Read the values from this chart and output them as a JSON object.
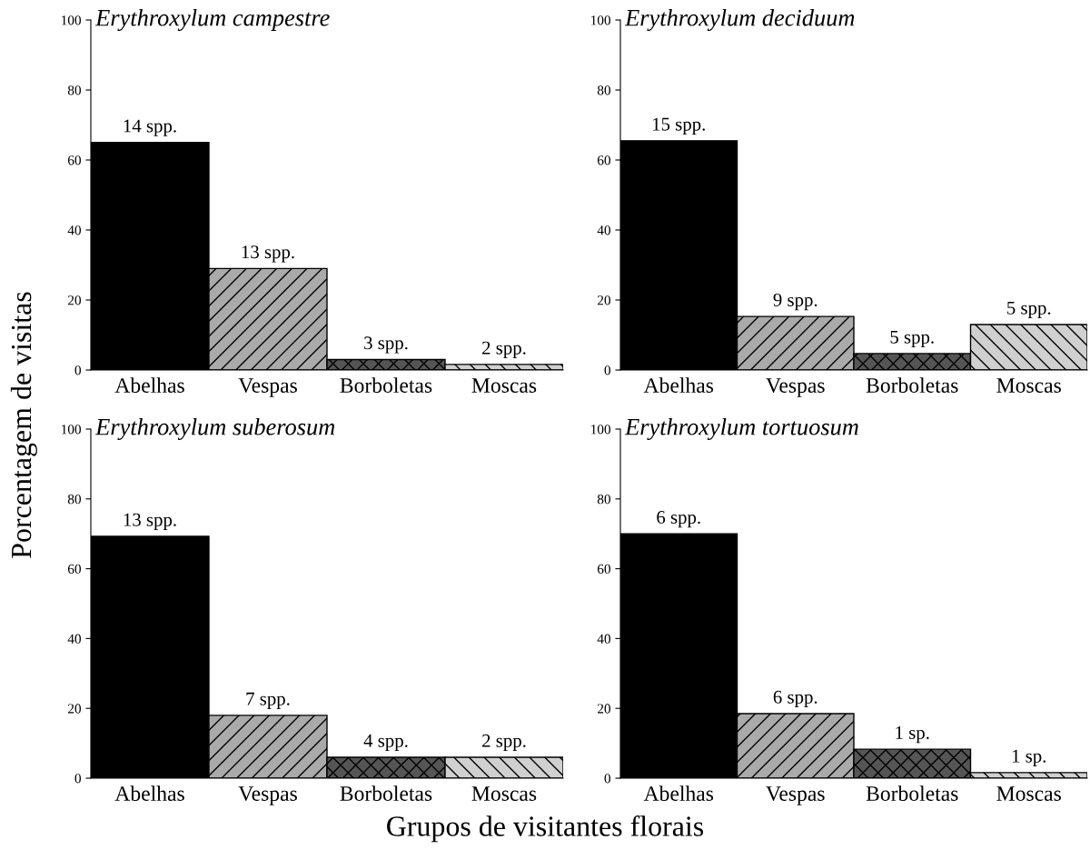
{
  "chart_data": [
    {
      "type": "bar",
      "title": "Erythroxylum campestre",
      "ylabel": "Porcentagem de visitas",
      "categories": [
        "Abelhas",
        "Vespas",
        "Borboletas",
        "Moscas"
      ],
      "values": [
        65,
        29,
        3,
        1.6
      ],
      "colors": [
        "#000000",
        "#aaaaaa",
        "#555555",
        "#d0d0d0"
      ],
      "annotations": [
        {
          "text": "14 spp.",
          "x": "Abelhas",
          "y": 65
        },
        {
          "text": "13 spp.",
          "x": "Vespas",
          "y": 29
        },
        {
          "text": "3 spp.",
          "x": "Borboletas",
          "y": 3
        },
        {
          "text": "2 spp.",
          "x": "Moscas",
          "y": 1.6
        }
      ],
      "ylim": [
        0,
        100
      ],
      "yticks": [
        0,
        20,
        40,
        60,
        80,
        100
      ],
      "grid": false
    },
    {
      "type": "bar",
      "title": "Erythroxylum deciduum",
      "categories": [
        "Abelhas",
        "Vespas",
        "Borboletas",
        "Moscas"
      ],
      "values": [
        65.5,
        15.3,
        4.7,
        13
      ],
      "colors": [
        "#000000",
        "#aaaaaa",
        "#555555",
        "#d0d0d0"
      ],
      "annotations": [
        {
          "text": "15 spp.",
          "x": "Abelhas",
          "y": 65.5
        },
        {
          "text": "9 spp.",
          "x": "Vespas",
          "y": 15.3
        },
        {
          "text": "5 spp.",
          "x": "Borboletas",
          "y": 4.7
        },
        {
          "text": "5 spp.",
          "x": "Moscas",
          "y": 13
        }
      ],
      "ylim": [
        0,
        100
      ],
      "yticks": [
        0,
        20,
        40,
        60,
        80,
        100
      ],
      "grid": false
    },
    {
      "type": "bar",
      "title": "Erythroxylum suberosum",
      "xlabel": "Grupos de visitantes florais",
      "categories": [
        "Abelhas",
        "Vespas",
        "Borboletas",
        "Moscas"
      ],
      "values": [
        69.3,
        18,
        6,
        6
      ],
      "colors": [
        "#000000",
        "#aaaaaa",
        "#555555",
        "#d0d0d0"
      ],
      "annotations": [
        {
          "text": "13 spp.",
          "x": "Abelhas",
          "y": 69.3
        },
        {
          "text": "7 spp.",
          "x": "Vespas",
          "y": 18
        },
        {
          "text": "4 spp.",
          "x": "Borboletas",
          "y": 6
        },
        {
          "text": "2 spp.",
          "x": "Moscas",
          "y": 6
        }
      ],
      "ylim": [
        0,
        100
      ],
      "yticks": [
        0,
        20,
        40,
        60,
        80,
        100
      ],
      "grid": false
    },
    {
      "type": "bar",
      "title": "Erythroxylum tortuosum",
      "categories": [
        "Abelhas",
        "Vespas",
        "Borboletas",
        "Moscas"
      ],
      "values": [
        70,
        18.5,
        8.3,
        1.6
      ],
      "colors": [
        "#000000",
        "#aaaaaa",
        "#555555",
        "#d0d0d0"
      ],
      "annotations": [
        {
          "text": "6 spp.",
          "x": "Abelhas",
          "y": 70
        },
        {
          "text": "6 spp.",
          "x": "Vespas",
          "y": 18.5
        },
        {
          "text": "1 sp.",
          "x": "Borboletas",
          "y": 8.3
        },
        {
          "text": "1 sp.",
          "x": "Moscas",
          "y": 1.6
        }
      ],
      "ylim": [
        0,
        100
      ],
      "yticks": [
        0,
        20,
        40,
        60,
        80,
        100
      ],
      "grid": false
    }
  ]
}
